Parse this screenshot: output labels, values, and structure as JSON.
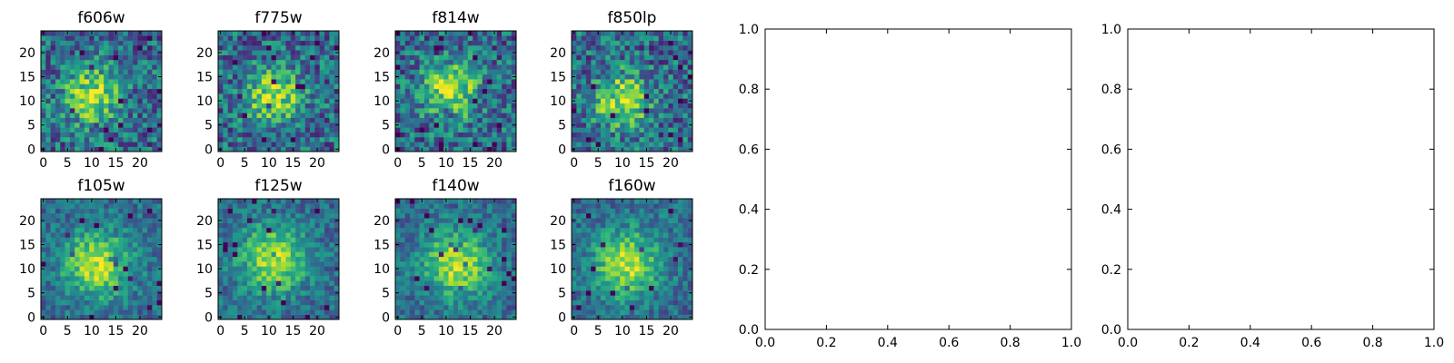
{
  "chart_data": {
    "type": "heatmap",
    "colormap": "viridis",
    "image_size": 25,
    "image_ticks": [
      0,
      5,
      10,
      15,
      20
    ],
    "panels": [
      {
        "title": "f606w",
        "type": "heatmap",
        "x_ticks": [
          "0",
          "5",
          "10",
          "15",
          "20"
        ],
        "y_ticks": [
          "0",
          "5",
          "10",
          "15",
          "20"
        ],
        "peak": [
          10,
          11
        ]
      },
      {
        "title": "f775w",
        "type": "heatmap",
        "x_ticks": [
          "0",
          "5",
          "10",
          "15",
          "20"
        ],
        "y_ticks": [
          "0",
          "5",
          "10",
          "15",
          "20"
        ],
        "peak": [
          11,
          11
        ]
      },
      {
        "title": "f814w",
        "type": "heatmap",
        "x_ticks": [
          "0",
          "5",
          "10",
          "15",
          "20"
        ],
        "y_ticks": [
          "0",
          "5",
          "10",
          "15",
          "20"
        ],
        "peak": [
          11,
          12
        ]
      },
      {
        "title": "f850lp",
        "type": "heatmap",
        "x_ticks": [
          "0",
          "5",
          "10",
          "15",
          "20"
        ],
        "y_ticks": [
          "0",
          "5",
          "10",
          "15",
          "20"
        ],
        "peak": [
          10,
          10
        ]
      },
      {
        "title": "f105w",
        "type": "heatmap",
        "x_ticks": [
          "0",
          "5",
          "10",
          "15",
          "20"
        ],
        "y_ticks": [
          "0",
          "5",
          "10",
          "15",
          "20"
        ],
        "peak": [
          11,
          11
        ]
      },
      {
        "title": "f125w",
        "type": "heatmap",
        "x_ticks": [
          "0",
          "5",
          "10",
          "15",
          "20"
        ],
        "y_ticks": [
          "0",
          "5",
          "10",
          "15",
          "20"
        ],
        "peak": [
          11,
          12
        ]
      },
      {
        "title": "f140w",
        "type": "heatmap",
        "x_ticks": [
          "0",
          "5",
          "10",
          "15",
          "20"
        ],
        "y_ticks": [
          "0",
          "5",
          "10",
          "15",
          "20"
        ],
        "peak": [
          12,
          11
        ]
      },
      {
        "title": "f160w",
        "type": "heatmap",
        "x_ticks": [
          "0",
          "5",
          "10",
          "15",
          "20"
        ],
        "y_ticks": [
          "0",
          "5",
          "10",
          "15",
          "20"
        ],
        "peak": [
          11,
          11
        ]
      }
    ],
    "empty_panels": [
      {
        "type": "empty",
        "xlim": [
          0.0,
          1.0
        ],
        "ylim": [
          0.0,
          1.0
        ],
        "x_ticks": [
          "0.0",
          "0.2",
          "0.4",
          "0.6",
          "0.8",
          "1.0"
        ],
        "y_ticks": [
          "0.0",
          "0.2",
          "0.4",
          "0.6",
          "0.8",
          "1.0"
        ]
      },
      {
        "type": "empty",
        "xlim": [
          0.0,
          1.0
        ],
        "ylim": [
          0.0,
          1.0
        ],
        "x_ticks": [
          "0.0",
          "0.2",
          "0.4",
          "0.6",
          "0.8",
          "1.0"
        ],
        "y_ticks": [
          "0.0",
          "0.2",
          "0.4",
          "0.6",
          "0.8",
          "1.0"
        ]
      }
    ]
  }
}
